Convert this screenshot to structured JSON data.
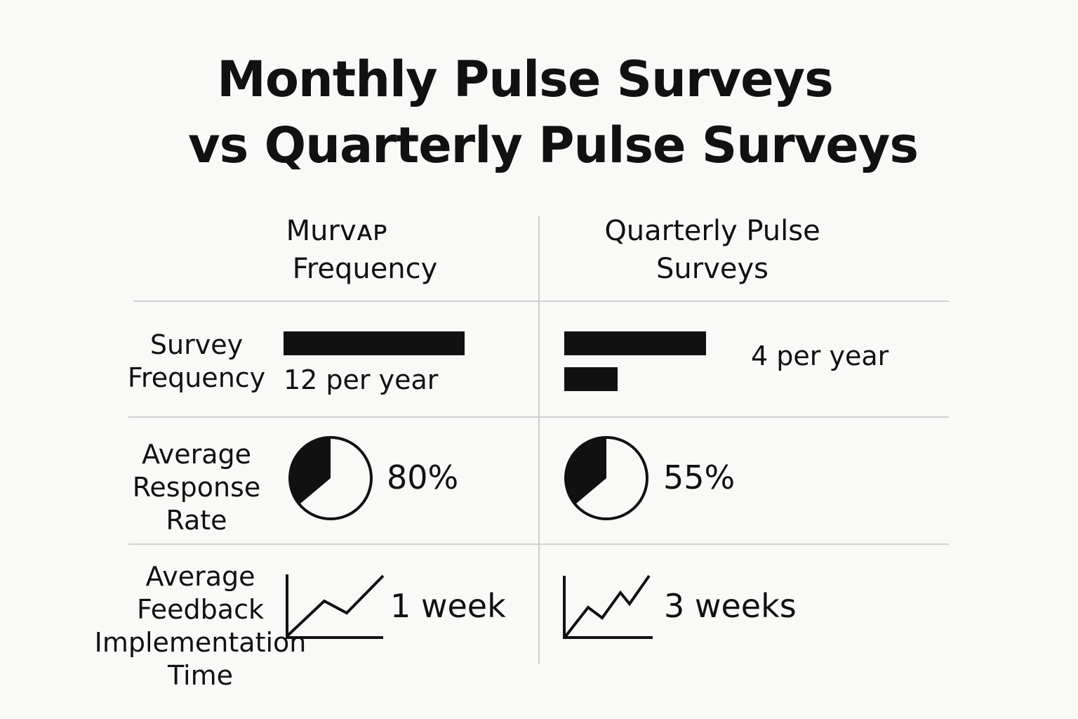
{
  "title": {
    "line1": "Monthly Pulse Surveys",
    "line2": "vs Quarterly Pulse Surveys"
  },
  "columns": {
    "monthly": {
      "line1": "Murvᴀᴘ",
      "line2": "Frequency"
    },
    "quarterly": {
      "line1": "Quarterly Pulse",
      "line2": "Surveys"
    }
  },
  "rows": {
    "frequency": {
      "label": [
        "Survey",
        "Frequency"
      ],
      "monthly_value": "12 per year",
      "quarterly_value": "4 per year"
    },
    "response_rate": {
      "label": [
        "Average",
        "Response",
        "Rate"
      ],
      "monthly_value": "80%",
      "quarterly_value": "55%"
    },
    "implementation_time": {
      "label": [
        "Average",
        "Feedback",
        "Implementation",
        "Time"
      ],
      "monthly_value": "1 week",
      "quarterly_value": "3 weeks"
    }
  },
  "icons": {
    "frequency_bars": "bar-chart-icon",
    "response_pie": "pie-chart-icon",
    "implementation_trend": "line-trend-icon"
  },
  "colors": {
    "background": "#f9f9f7",
    "ink": "#111111",
    "divider": "#cfcfcf"
  }
}
